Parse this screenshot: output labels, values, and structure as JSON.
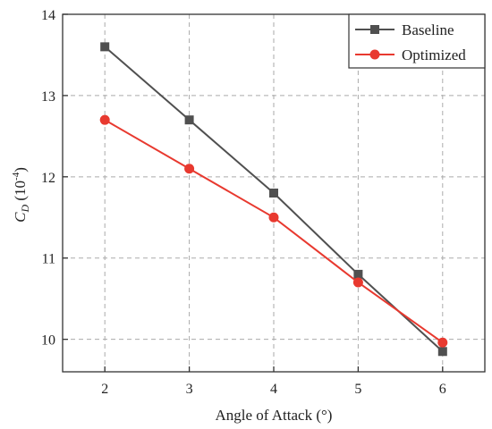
{
  "chart_data": {
    "type": "line",
    "title": "",
    "xlabel": "Angle of Attack (°)",
    "ylabel": {
      "symbol": "C",
      "subscript": "D",
      "unit_prefix": " (10",
      "unit_exponent": "-4",
      "unit_suffix": ")"
    },
    "x": [
      2,
      3,
      4,
      5,
      6
    ],
    "x_ticks": [
      "2",
      "3",
      "4",
      "5",
      "6"
    ],
    "y_ticks": [
      "10",
      "11",
      "12",
      "13",
      "14"
    ],
    "xlim": [
      1.5,
      6.5
    ],
    "ylim": [
      9.6,
      14
    ],
    "grid": true,
    "legend_position": "top-right",
    "series": [
      {
        "name": "Baseline",
        "values": [
          13.6,
          12.7,
          11.8,
          10.8,
          9.85
        ],
        "color": "#505050",
        "marker": "square"
      },
      {
        "name": "Optimized",
        "values": [
          12.7,
          12.1,
          11.5,
          10.7,
          9.96
        ],
        "color": "#e8392f",
        "marker": "circle"
      }
    ]
  }
}
